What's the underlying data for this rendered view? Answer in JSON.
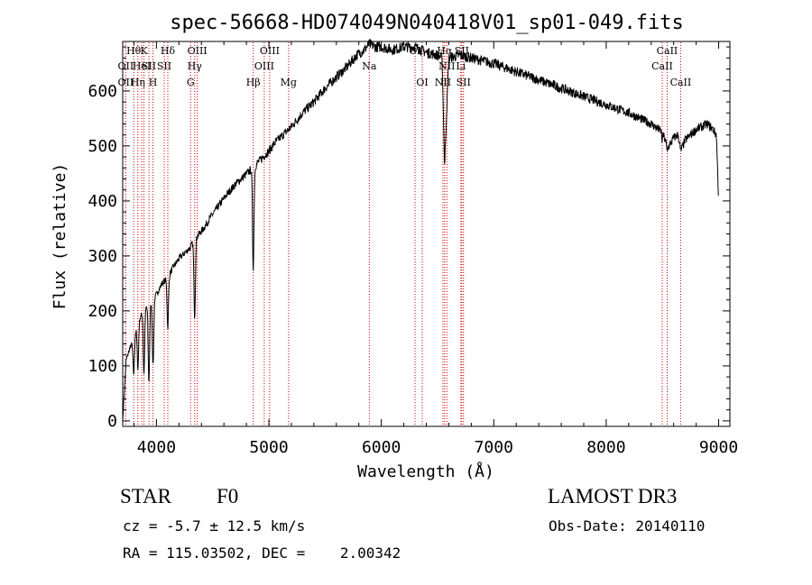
{
  "chart_data": {
    "type": "line",
    "title": "spec-56668-HD074049N040418V01_sp01-049.fits",
    "xlabel": "Wavelength (Å)",
    "ylabel": "Flux (relative)",
    "xlim": [
      3700,
      9100
    ],
    "ylim": [
      -10,
      690
    ],
    "xticks": [
      4000,
      5000,
      6000,
      7000,
      8000,
      9000
    ],
    "yticks": [
      0,
      100,
      200,
      300,
      400,
      500,
      600
    ],
    "grid": false,
    "legend": "none",
    "line_color": "#000000",
    "marker_color": "#cc0000",
    "series": [
      {
        "x": [
          3700,
          3730,
          3760,
          3800,
          3830,
          3860,
          3880,
          3900,
          3930,
          3960,
          3980,
          4000,
          4050,
          4100,
          4150,
          4200,
          4250,
          4300,
          4340,
          4380,
          4420,
          4480,
          4550,
          4620,
          4700,
          4780,
          4830,
          4870,
          4900,
          4950,
          5000,
          5050,
          5100,
          5150,
          5200,
          5300,
          5400,
          5500,
          5600,
          5700,
          5780,
          5850,
          5890,
          5950,
          6000,
          6100,
          6200,
          6300,
          6400,
          6500,
          6540,
          6563,
          6600,
          6700,
          6800,
          6900,
          7000,
          7200,
          7400,
          7600,
          7800,
          8000,
          8200,
          8400,
          8500,
          8540,
          8560,
          8600,
          8640,
          8662,
          8700,
          8750,
          8800,
          8850,
          8900,
          8950,
          8980,
          9000
        ],
        "y": [
          0,
          110,
          130,
          150,
          175,
          190,
          200,
          205,
          210,
          215,
          225,
          230,
          250,
          260,
          280,
          295,
          305,
          315,
          330,
          340,
          350,
          370,
          390,
          410,
          430,
          445,
          455,
          460,
          470,
          480,
          490,
          505,
          515,
          525,
          535,
          560,
          580,
          605,
          625,
          645,
          665,
          675,
          685,
          680,
          680,
          675,
          680,
          680,
          670,
          665,
          660,
          470,
          660,
          665,
          660,
          655,
          650,
          635,
          620,
          605,
          590,
          575,
          560,
          540,
          525,
          500,
          500,
          515,
          520,
          490,
          510,
          520,
          530,
          535,
          540,
          530,
          520,
          400
        ]
      }
    ],
    "absorption_dips": [
      {
        "x": 3798,
        "y": 85
      },
      {
        "x": 3835,
        "y": 95
      },
      {
        "x": 3889,
        "y": 85
      },
      {
        "x": 3933,
        "y": 70
      },
      {
        "x": 3970,
        "y": 100
      },
      {
        "x": 4101,
        "y": 170
      },
      {
        "x": 4340,
        "y": 190
      },
      {
        "x": 4861,
        "y": 280
      },
      {
        "x": 6563,
        "y": 460
      },
      {
        "x": 8498,
        "y": 510
      },
      {
        "x": 8542,
        "y": 490
      },
      {
        "x": 8662,
        "y": 490
      }
    ],
    "line_markers": [
      {
        "wavelength": 3727,
        "label": "OII",
        "row": 2
      },
      {
        "wavelength": 3727,
        "label": "OII",
        "row": 3
      },
      {
        "wavelength": 3798,
        "label": "Hθ",
        "row": 1
      },
      {
        "wavelength": 3835,
        "label": "Hη",
        "row": 3
      },
      {
        "wavelength": 3869,
        "label": "HeI",
        "row": 2
      },
      {
        "wavelength": 3889,
        "label": "K",
        "row": 1
      },
      {
        "wavelength": 3933,
        "label": "SII",
        "row": 2
      },
      {
        "wavelength": 3969,
        "label": "H",
        "row": 3
      },
      {
        "wavelength": 4069,
        "label": "SII",
        "row": 2
      },
      {
        "wavelength": 4101,
        "label": "Hδ",
        "row": 1
      },
      {
        "wavelength": 4304,
        "label": "G",
        "row": 3
      },
      {
        "wavelength": 4340,
        "label": "Hγ",
        "row": 2
      },
      {
        "wavelength": 4363,
        "label": "OIII",
        "row": 1
      },
      {
        "wavelength": 4861,
        "label": "Hβ",
        "row": 3
      },
      {
        "wavelength": 4959,
        "label": "OIII",
        "row": 2
      },
      {
        "wavelength": 5007,
        "label": "OIII",
        "row": 1
      },
      {
        "wavelength": 5175,
        "label": "Mg",
        "row": 3
      },
      {
        "wavelength": 5893,
        "label": "Na",
        "row": 2
      },
      {
        "wavelength": 6300,
        "label": "OI",
        "row": 1
      },
      {
        "wavelength": 6364,
        "label": "OI",
        "row": 3
      },
      {
        "wavelength": 6548,
        "label": "NII",
        "row": 3
      },
      {
        "wavelength": 6563,
        "label": "Hα",
        "row": 1
      },
      {
        "wavelength": 6583,
        "label": "NII",
        "row": 2
      },
      {
        "wavelength": 6707,
        "label": "Li",
        "row": 2
      },
      {
        "wavelength": 6716,
        "label": "SII",
        "row": 1
      },
      {
        "wavelength": 6731,
        "label": "SII",
        "row": 3
      },
      {
        "wavelength": 8498,
        "label": "CaII",
        "row": 2
      },
      {
        "wavelength": 8542,
        "label": "CaII",
        "row": 1
      },
      {
        "wavelength": 8662,
        "label": "CaII",
        "row": 3
      }
    ]
  },
  "info": {
    "class_label": "STAR",
    "subclass": "F0",
    "survey": "LAMOST DR3",
    "redshift": "cz = -5.7 ± 12.5 km/s",
    "obs_date": "Obs-Date: 20140110",
    "coordinates": "RA = 115.03502, DEC =    2.00342"
  }
}
